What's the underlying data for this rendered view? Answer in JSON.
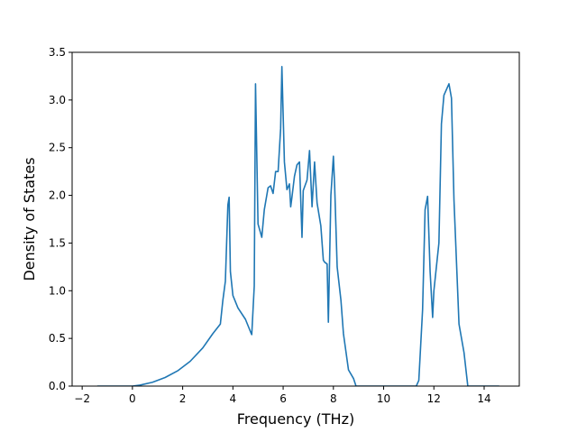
{
  "chart_data": {
    "type": "line",
    "title": "",
    "xlabel": "Frequency (THz)",
    "ylabel": "Density of States",
    "xlim": [
      -2.4,
      15.4
    ],
    "ylim": [
      0.0,
      3.5
    ],
    "grid": false,
    "legend": "none",
    "line_color": "#1f77b4",
    "x_ticks": [
      -2,
      0,
      2,
      4,
      6,
      8,
      10,
      12,
      14
    ],
    "x_tick_labels": [
      "−2",
      "0",
      "2",
      "4",
      "6",
      "8",
      "10",
      "12",
      "14"
    ],
    "y_ticks": [
      0.0,
      0.5,
      1.0,
      1.5,
      2.0,
      2.5,
      3.0,
      3.5
    ],
    "y_tick_labels": [
      "0.0",
      "0.5",
      "1.0",
      "1.5",
      "2.0",
      "2.5",
      "3.0",
      "3.5"
    ],
    "series": [
      {
        "x": [
          -1.4,
          0.0,
          0.3,
          0.8,
          1.3,
          1.8,
          2.3,
          2.8,
          3.2,
          3.5,
          3.6,
          3.7,
          3.8,
          3.85,
          3.9,
          4.0,
          4.2,
          4.5,
          4.7,
          4.75,
          4.85,
          4.9,
          5.0,
          5.15,
          5.25,
          5.4,
          5.5,
          5.6,
          5.7,
          5.8,
          5.9,
          5.95,
          6.05,
          6.15,
          6.25,
          6.3,
          6.35,
          6.45,
          6.55,
          6.65,
          6.75,
          6.8,
          6.95,
          7.05,
          7.15,
          7.25,
          7.35,
          7.5,
          7.6,
          7.65,
          7.75,
          7.8,
          7.9,
          8.0,
          8.05,
          8.15,
          8.3,
          8.4,
          8.6,
          8.8,
          8.9,
          10.5,
          11.3,
          11.4,
          11.55,
          11.65,
          11.75,
          11.85,
          11.95,
          12.0,
          12.1,
          12.2,
          12.3,
          12.4,
          12.6,
          12.7,
          12.8,
          13.0,
          13.2,
          13.35,
          13.6,
          14.6
        ],
        "y": [
          0.0,
          0.0,
          0.01,
          0.04,
          0.09,
          0.16,
          0.26,
          0.4,
          0.55,
          0.65,
          0.9,
          1.1,
          1.9,
          1.98,
          1.2,
          0.95,
          0.82,
          0.7,
          0.57,
          0.54,
          1.05,
          3.17,
          1.7,
          1.56,
          1.85,
          2.08,
          2.1,
          2.02,
          2.25,
          2.25,
          2.7,
          3.35,
          2.35,
          2.06,
          2.12,
          1.88,
          1.98,
          2.2,
          2.32,
          2.35,
          1.56,
          2.05,
          2.16,
          2.47,
          1.88,
          2.35,
          1.92,
          1.68,
          1.32,
          1.3,
          1.28,
          0.67,
          2.0,
          2.41,
          2.1,
          1.25,
          0.9,
          0.55,
          0.17,
          0.08,
          0.0,
          0.0,
          0.0,
          0.06,
          0.8,
          1.85,
          1.99,
          1.2,
          0.72,
          1.0,
          1.25,
          1.5,
          2.75,
          3.05,
          3.17,
          3.02,
          1.95,
          0.65,
          0.35,
          0.0,
          0.0,
          0.0
        ]
      }
    ]
  }
}
